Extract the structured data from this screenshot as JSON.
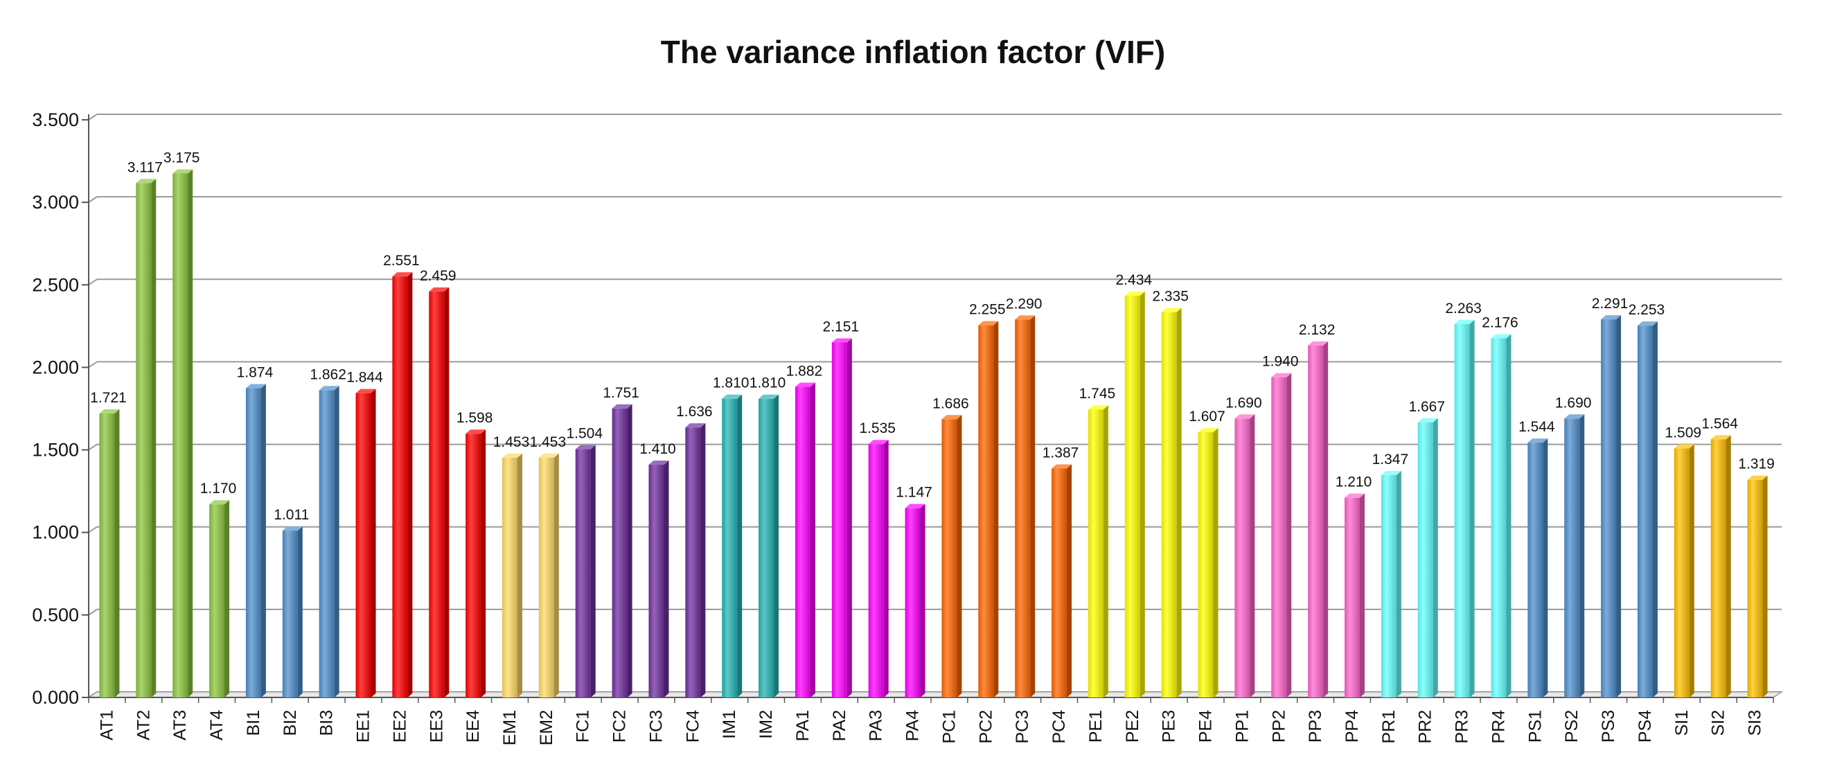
{
  "chart_data": {
    "type": "bar",
    "title": "The variance inflation factor (VIF)",
    "xlabel": "",
    "ylabel": "",
    "ylim": [
      0,
      3.5
    ],
    "yticks": [
      "0.000",
      "0.500",
      "1.000",
      "1.500",
      "2.000",
      "2.500",
      "3.000",
      "3.500"
    ],
    "grid": true,
    "legend": "none",
    "categories": [
      "AT1",
      "AT2",
      "AT3",
      "AT4",
      "BI1",
      "BI2",
      "BI3",
      "EE1",
      "EE2",
      "EE3",
      "EE4",
      "EM1",
      "EM2",
      "FC1",
      "FC2",
      "FC3",
      "FC4",
      "IM1",
      "IM2",
      "PA1",
      "PA2",
      "PA3",
      "PA4",
      "PC1",
      "PC2",
      "PC3",
      "PC4",
      "PE1",
      "PE2",
      "PE3",
      "PE4",
      "PP1",
      "PP2",
      "PP3",
      "PP4",
      "PR1",
      "PR2",
      "PR3",
      "PR4",
      "PS1",
      "PS2",
      "PS3",
      "PS4",
      "SI1",
      "SI2",
      "SI3"
    ],
    "values": [
      1.721,
      3.117,
      3.175,
      1.17,
      1.874,
      1.011,
      1.862,
      1.844,
      2.551,
      2.459,
      1.598,
      1.453,
      1.453,
      1.504,
      1.751,
      1.41,
      1.636,
      1.81,
      1.81,
      1.882,
      2.151,
      1.535,
      1.147,
      1.686,
      2.255,
      2.29,
      1.387,
      1.745,
      2.434,
      2.335,
      1.607,
      1.69,
      1.94,
      2.132,
      1.21,
      1.347,
      1.667,
      2.263,
      2.176,
      1.544,
      1.69,
      2.291,
      2.253,
      1.509,
      1.564,
      1.319
    ],
    "data_labels": [
      "1.721",
      "3.117",
      "3.175",
      "1.170",
      "1.874",
      "1.011",
      "1.862",
      "1.844",
      "2.551",
      "2.459",
      "1.598",
      "1.453",
      "1.453",
      "1.504",
      "1.751",
      "1.410",
      "1.636",
      "1.810",
      "1.810",
      "1.882",
      "2.151",
      "1.535",
      "1.147",
      "1.686",
      "2.255",
      "2.290",
      "1.387",
      "1.745",
      "2.434",
      "2.335",
      "1.607",
      "1.690",
      "1.940",
      "2.132",
      "1.210",
      "1.347",
      "1.667",
      "2.263",
      "2.176",
      "1.544",
      "1.690",
      "2.291",
      "2.253",
      "1.509",
      "1.564",
      "1.319"
    ],
    "group_colors": {
      "AT": "#8cc63f",
      "BI": "#4f8fcc",
      "EE": "#ff0000",
      "EM": "#ffd966",
      "FC": "#7030a0",
      "IM": "#26b5b5",
      "PA": "#ff00ff",
      "PC": "#ff6600",
      "PE": "#ffff00",
      "PP": "#ff66cc",
      "PR": "#66ffff",
      "PS": "#4f8fcc",
      "SI": "#ffc000"
    }
  }
}
